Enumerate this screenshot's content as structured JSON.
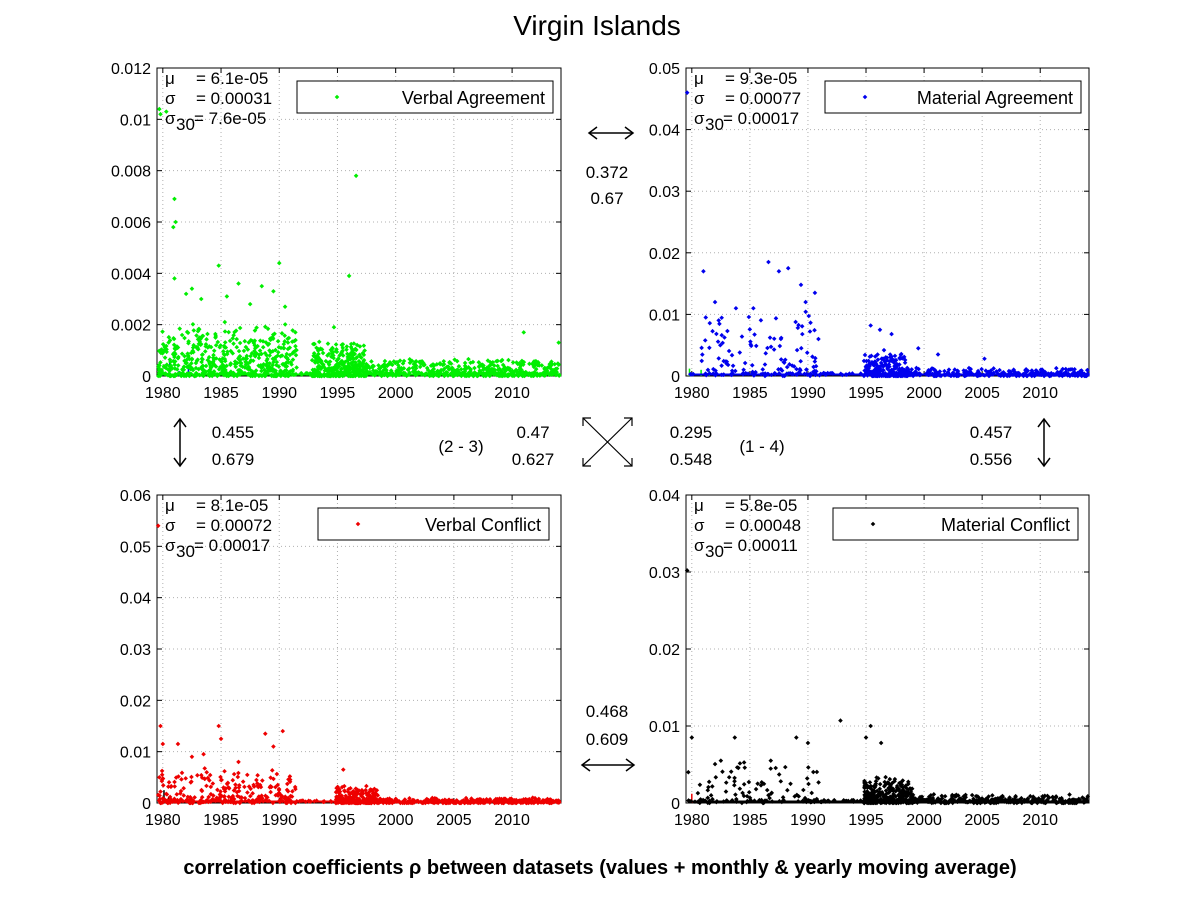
{
  "title": "Virgin Islands",
  "caption": "correlation coefficients ρ between datasets (values + monthly & yearly moving average)",
  "pair_labels": {
    "p23": "(2 - 3)",
    "p14": "(1 - 4)"
  },
  "correlations": {
    "top": {
      "a": "0.372",
      "b": "0.67"
    },
    "left": {
      "a": "0.455",
      "b": "0.679"
    },
    "diag23": {
      "a": "0.47",
      "b": "0.627"
    },
    "diag14": {
      "a": "0.295",
      "b": "0.548"
    },
    "right": {
      "a": "0.457",
      "b": "0.556"
    },
    "bottom": {
      "a": "0.468",
      "b": "0.609"
    }
  },
  "chart_data": [
    {
      "type": "scatter",
      "legend": "Verbal Agreement",
      "color": "#00ee00",
      "stats": {
        "mu": "= 6.1e-05",
        "sigma": "= 0.00031",
        "sigma30": "= 7.6e-05"
      },
      "xlim": [
        1979.5,
        2014.2
      ],
      "ylim": [
        0,
        0.012
      ],
      "xticks": [
        "1980",
        "1985",
        "1990",
        "1995",
        "2000",
        "2005",
        "2010"
      ],
      "yticks": [
        "0",
        "0.002",
        "0.004",
        "0.006",
        "0.008",
        "0.01",
        "0.012"
      ],
      "grid": true,
      "legend_position": "top-right",
      "points": [
        [
          1979.7,
          0.0104
        ],
        [
          1979.8,
          0.0102
        ],
        [
          1980.3,
          0.0103
        ],
        [
          1981.0,
          0.0069
        ],
        [
          1980.9,
          0.0058
        ],
        [
          1981.1,
          0.006
        ],
        [
          1981.0,
          0.0038
        ],
        [
          1984.8,
          0.0043
        ],
        [
          1990.0,
          0.0044
        ],
        [
          1996.0,
          0.0039
        ],
        [
          1996.6,
          0.0078
        ],
        [
          2011.0,
          0.0017
        ],
        [
          2014.0,
          0.0013
        ],
        [
          1982.5,
          0.0034
        ],
        [
          1986.5,
          0.0036
        ],
        [
          1988.5,
          0.0035
        ],
        [
          1989.5,
          0.0033
        ],
        [
          1982.0,
          0.0032
        ],
        [
          1983.3,
          0.003
        ],
        [
          1985.5,
          0.0031
        ],
        [
          1987.5,
          0.0028
        ],
        [
          1990.5,
          0.0027
        ],
        [
          1994.7,
          0.0019
        ]
      ],
      "bands": [
        {
          "x0": 1979.6,
          "x1": 1991.5,
          "level": 0.0011,
          "spread": 0.0012,
          "count": 480
        },
        {
          "x0": 1992.8,
          "x1": 1997.5,
          "level": 0.0007,
          "spread": 0.001,
          "count": 300
        },
        {
          "x0": 1997.5,
          "x1": 2014.1,
          "level": 0.00035,
          "spread": 0.00035,
          "count": 420
        }
      ],
      "spikes": [
        {
          "x": 1979.9,
          "y": 0.0002,
          "color": "#0000ff"
        },
        {
          "x": 1980.6,
          "y": 0.0007,
          "color": "#0000ff"
        },
        {
          "x": 1981.4,
          "y": 0.0002,
          "color": "#0000ff"
        },
        {
          "x": 1982.2,
          "y": 0.0003,
          "color": "#0000ff"
        }
      ]
    },
    {
      "type": "scatter",
      "legend": "Material Agreement",
      "color": "#0000ee",
      "stats": {
        "mu": "= 9.3e-05",
        "sigma": "= 0.00077",
        "sigma30": "= 0.00017"
      },
      "xlim": [
        1979.5,
        2014.2
      ],
      "ylim": [
        0,
        0.05
      ],
      "xticks": [
        "1980",
        "1985",
        "1990",
        "1995",
        "2000",
        "2005",
        "2010"
      ],
      "yticks": [
        "0",
        "0.01",
        "0.02",
        "0.03",
        "0.04",
        "0.05"
      ],
      "grid": true,
      "legend_position": "top-right",
      "points": [
        [
          1979.6,
          0.046
        ],
        [
          1981.0,
          0.017
        ],
        [
          1982.0,
          0.012
        ],
        [
          1986.6,
          0.0185
        ],
        [
          1987.5,
          0.017
        ],
        [
          1988.3,
          0.0175
        ],
        [
          1989.4,
          0.0148
        ],
        [
          1989.8,
          0.012
        ],
        [
          1990.6,
          0.0135
        ],
        [
          1983.8,
          0.011
        ],
        [
          1985.3,
          0.011
        ],
        [
          1981.2,
          0.0095
        ],
        [
          1995.4,
          0.0082
        ],
        [
          1996.2,
          0.0075
        ],
        [
          1997.2,
          0.0068
        ],
        [
          2005.2,
          0.0028
        ],
        [
          1999.5,
          0.0045
        ],
        [
          2001.2,
          0.0035
        ]
      ],
      "bands": [
        {
          "x0": 1980.8,
          "x1": 1991.0,
          "level": 0.0055,
          "spread": 0.0045,
          "count": 110
        },
        {
          "x0": 1994.8,
          "x1": 1998.5,
          "level": 0.0022,
          "spread": 0.0035,
          "count": 180
        },
        {
          "x0": 1998.5,
          "x1": 2014.1,
          "level": 0.0007,
          "spread": 0.0008,
          "count": 260
        }
      ],
      "spikes": [
        {
          "x": 1979.8,
          "y": 0.0012,
          "color": "#00ee00"
        },
        {
          "x": 1980.8,
          "y": 0.001,
          "color": "#00ee00"
        },
        {
          "x": 1981.5,
          "y": 0.0008,
          "color": "#00ee00"
        },
        {
          "x": 1986.3,
          "y": 0.0006,
          "color": "#00ee00"
        },
        {
          "x": 1988.2,
          "y": 0.0007,
          "color": "#00ee00"
        }
      ]
    },
    {
      "type": "scatter",
      "legend": "Verbal Conflict",
      "color": "#ee0000",
      "stats": {
        "mu": "= 8.1e-05",
        "sigma": "= 0.00072",
        "sigma30": "= 0.00017"
      },
      "xlim": [
        1979.5,
        2014.2
      ],
      "ylim": [
        0,
        0.06
      ],
      "xticks": [
        "1980",
        "1985",
        "1990",
        "1995",
        "2000",
        "2005",
        "2010"
      ],
      "yticks": [
        "0",
        "0.01",
        "0.02",
        "0.03",
        "0.04",
        "0.05",
        "0.06"
      ],
      "grid": true,
      "legend_position": "top-right",
      "points": [
        [
          1979.6,
          0.054
        ],
        [
          1979.8,
          0.015
        ],
        [
          1980.0,
          0.0115
        ],
        [
          1981.3,
          0.0115
        ],
        [
          1984.8,
          0.015
        ],
        [
          1985.0,
          0.0125
        ],
        [
          1988.8,
          0.0135
        ],
        [
          1990.3,
          0.014
        ],
        [
          1989.5,
          0.011
        ],
        [
          1982.5,
          0.009
        ],
        [
          1983.5,
          0.0095
        ],
        [
          1986.5,
          0.008
        ],
        [
          1995.5,
          0.0065
        ],
        [
          1979.7,
          0.005
        ]
      ],
      "bands": [
        {
          "x0": 1979.6,
          "x1": 1991.5,
          "level": 0.0035,
          "spread": 0.004,
          "count": 220
        },
        {
          "x0": 1994.8,
          "x1": 1998.5,
          "level": 0.0018,
          "spread": 0.0025,
          "count": 200
        },
        {
          "x0": 1998.5,
          "x1": 2014.1,
          "level": 0.0005,
          "spread": 0.0009,
          "count": 320
        }
      ],
      "spikes": [
        {
          "x": 1980.1,
          "y": 0.0025,
          "color": "#000000"
        },
        {
          "x": 1980.5,
          "y": 0.0012,
          "color": "#000000"
        },
        {
          "x": 1981.5,
          "y": 0.0008,
          "color": "#000000"
        }
      ]
    },
    {
      "type": "scatter",
      "legend": "Material Conflict",
      "color": "#000000",
      "stats": {
        "mu": "= 5.8e-05",
        "sigma": "= 0.00048",
        "sigma30": "= 0.00011"
      },
      "xlim": [
        1979.5,
        2014.2
      ],
      "ylim": [
        0,
        0.04
      ],
      "xticks": [
        "1980",
        "1985",
        "1990",
        "1995",
        "2000",
        "2005",
        "2010"
      ],
      "yticks": [
        "0",
        "0.01",
        "0.02",
        "0.03",
        "0.04"
      ],
      "grid": true,
      "legend_position": "top-right",
      "points": [
        [
          1979.6,
          0.0302
        ],
        [
          1980.0,
          0.0085
        ],
        [
          1983.7,
          0.0085
        ],
        [
          1989.0,
          0.0085
        ],
        [
          1992.8,
          0.0107
        ],
        [
          1995.4,
          0.01
        ],
        [
          1990.0,
          0.0078
        ],
        [
          1982.5,
          0.0055
        ],
        [
          1986.8,
          0.0055
        ],
        [
          1996.3,
          0.0078
        ],
        [
          1995.0,
          0.0085
        ],
        [
          1979.7,
          0.004
        ]
      ],
      "bands": [
        {
          "x0": 1980.2,
          "x1": 1991.0,
          "level": 0.003,
          "spread": 0.003,
          "count": 80
        },
        {
          "x0": 1994.8,
          "x1": 1999.0,
          "level": 0.0018,
          "spread": 0.0025,
          "count": 260
        },
        {
          "x0": 1999.0,
          "x1": 2014.1,
          "level": 0.0006,
          "spread": 0.0008,
          "count": 260
        }
      ],
      "spikes": [
        {
          "x": 1980.0,
          "y": 0.0012,
          "color": "#ee0000"
        },
        {
          "x": 1995.8,
          "y": 0.0005,
          "color": "#ee0000"
        }
      ]
    }
  ]
}
